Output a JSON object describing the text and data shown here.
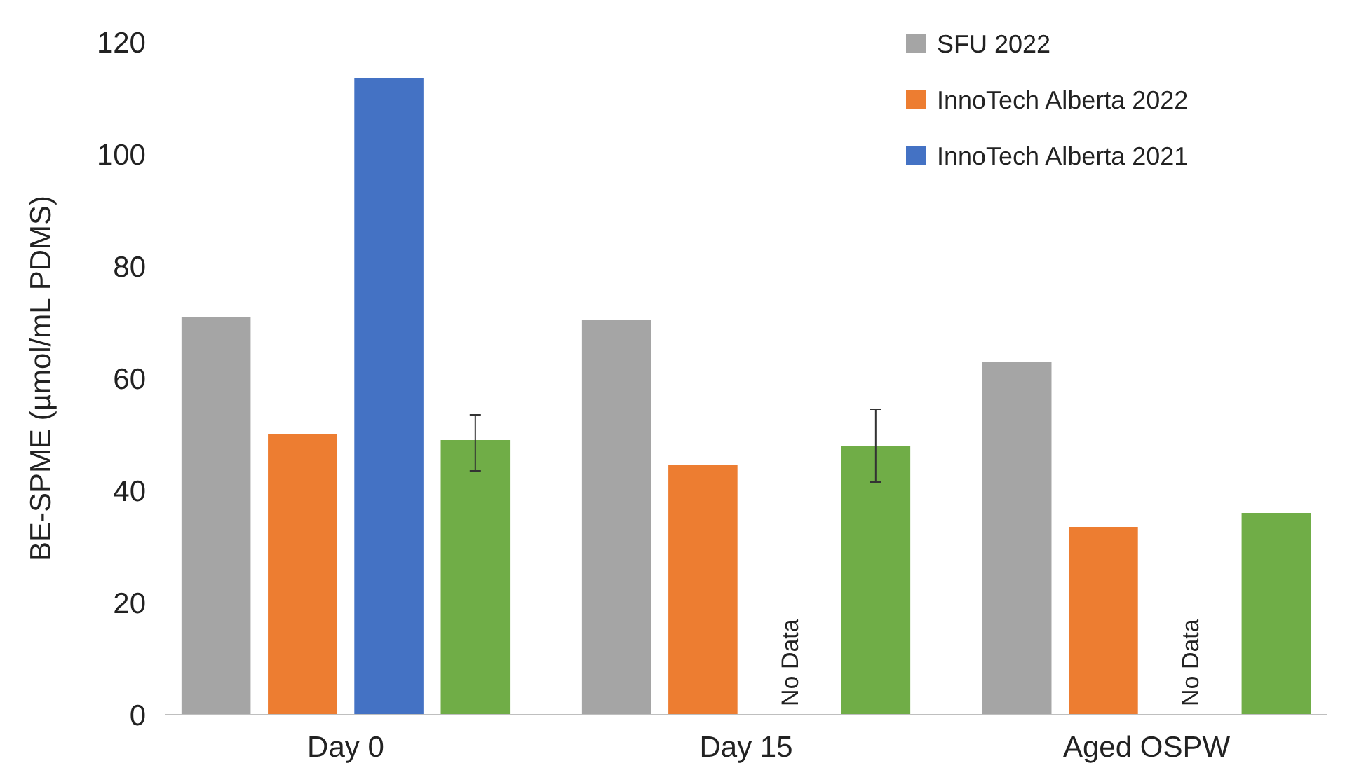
{
  "chart_data": {
    "type": "bar",
    "ylabel": "BE-SPME (µmol/mL PDMS)",
    "categories": [
      "Day 0",
      "Day 15",
      "Aged OSPW"
    ],
    "series": [
      {
        "name": "SFU 2022",
        "color": "#a5a5a5",
        "values": [
          71,
          70.5,
          63
        ]
      },
      {
        "name": "InnoTech Alberta 2022",
        "color": "#ed7d31",
        "values": [
          50,
          44.5,
          33.5
        ]
      },
      {
        "name": "InnoTech Alberta 2021",
        "color": "#4472c4",
        "values": [
          113.5,
          null,
          null
        ]
      },
      {
        "color": "#70ad47",
        "values": [
          49,
          48,
          36
        ],
        "errors": [
          [
            43.5,
            53.5
          ],
          [
            41.5,
            54.5
          ],
          null
        ]
      }
    ],
    "annotations": [
      "No Data",
      "No Data"
    ],
    "ylim": [
      0,
      120
    ],
    "yticks": [
      0,
      20,
      40,
      60,
      80,
      100,
      120
    ],
    "grid": false,
    "legend": "top right"
  }
}
